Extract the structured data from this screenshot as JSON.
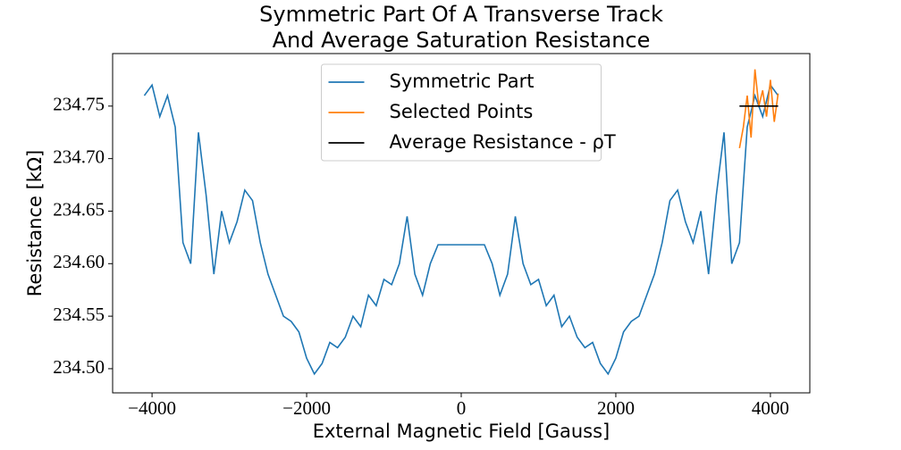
{
  "chart_data": {
    "type": "line",
    "title": [
      "Symmetric Part Of A Transverse Track",
      "And Average Saturation Resistance"
    ],
    "x_label": "External Magnetic Field [Gauss]",
    "y_label": "Resistance [kΩ]",
    "xlim": [
      -4510,
      4510
    ],
    "ylim": [
      234.477,
      234.8
    ],
    "xticks": [
      {
        "value": -4000,
        "label": "−4000"
      },
      {
        "value": -2000,
        "label": "−2000"
      },
      0,
      2000,
      4000
    ],
    "yticks": [
      {
        "value": 234.5,
        "label": "234.50"
      },
      234.55,
      {
        "value": 234.6,
        "label": "234.60"
      },
      234.65,
      {
        "value": 234.7,
        "label": "234.70"
      },
      234.75
    ],
    "legend": "upper center",
    "series": [
      {
        "name": "Symmetric Part",
        "color": "#1f77b4",
        "x": [
          -4100,
          -4000,
          -3900,
          -3800,
          -3700,
          -3600,
          -3500,
          -3400,
          -3300,
          -3200,
          -3100,
          -3000,
          -2900,
          -2800,
          -2700,
          -2600,
          -2500,
          -2400,
          -2300,
          -2200,
          -2100,
          -2000,
          -1900,
          -1800,
          -1700,
          -1600,
          -1500,
          -1400,
          -1300,
          -1200,
          -1100,
          -1000,
          -900,
          -800,
          -700,
          -600,
          -500,
          -400,
          -300,
          -200,
          -100,
          0,
          100,
          200,
          300,
          400,
          500,
          600,
          700,
          800,
          900,
          1000,
          1100,
          1200,
          1300,
          1400,
          1500,
          1600,
          1700,
          1800,
          1900,
          2000,
          2100,
          2200,
          2300,
          2400,
          2500,
          2600,
          2700,
          2800,
          2900,
          3000,
          3100,
          3200,
          3300,
          3400,
          3500,
          3600,
          3700,
          3800,
          3900,
          4000,
          4100
        ],
        "values": [
          234.76,
          234.77,
          234.74,
          234.76,
          234.73,
          234.62,
          234.6,
          234.725,
          234.665,
          234.59,
          234.65,
          234.62,
          234.64,
          234.67,
          234.66,
          234.62,
          234.59,
          234.57,
          234.55,
          234.545,
          234.535,
          234.51,
          234.495,
          234.505,
          234.525,
          234.52,
          234.53,
          234.55,
          234.54,
          234.57,
          234.56,
          234.585,
          234.58,
          234.6,
          234.645,
          234.59,
          234.57,
          234.6,
          234.618,
          234.618,
          234.618,
          234.618,
          234.618,
          234.618,
          234.618,
          234.6,
          234.57,
          234.59,
          234.645,
          234.6,
          234.58,
          234.585,
          234.56,
          234.57,
          234.54,
          234.55,
          234.53,
          234.52,
          234.525,
          234.505,
          234.495,
          234.51,
          234.535,
          234.545,
          234.55,
          234.57,
          234.59,
          234.62,
          234.66,
          234.67,
          234.64,
          234.62,
          234.65,
          234.59,
          234.665,
          234.725,
          234.6,
          234.62,
          234.73,
          234.76,
          234.74,
          234.77,
          234.76
        ]
      },
      {
        "name": "Selected Points",
        "color": "#ff7f0e",
        "x": [
          3600,
          3650,
          3700,
          3750,
          3800,
          3850,
          3900,
          3950,
          4000,
          4050,
          4100
        ],
        "values": [
          234.71,
          234.73,
          234.76,
          234.72,
          234.785,
          234.75,
          234.765,
          234.74,
          234.775,
          234.735,
          234.762
        ]
      },
      {
        "name": "Average Resistance - ρT",
        "color": "#000000",
        "x": [
          3600,
          4100
        ],
        "values": [
          234.75,
          234.75
        ]
      }
    ]
  }
}
